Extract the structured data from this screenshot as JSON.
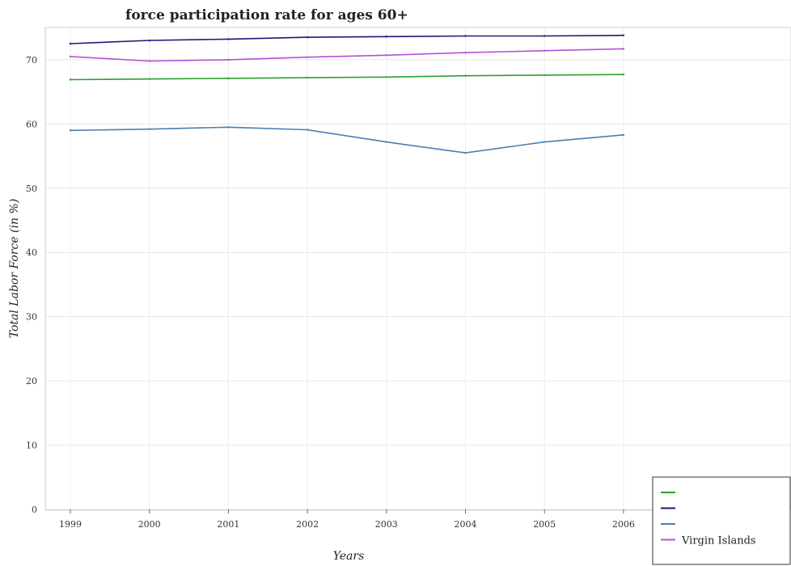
{
  "chart_data": {
    "type": "line",
    "title": "force participation rate for ages 60+",
    "xlabel": "Years",
    "ylabel": "Total Labor Force (in %)",
    "categories": [
      "1999",
      "2000",
      "2001",
      "2002",
      "2003",
      "2004",
      "2005",
      "2006"
    ],
    "ylim": [
      0,
      75
    ],
    "yticks": [
      0,
      10,
      20,
      30,
      40,
      50,
      60,
      70
    ],
    "grid": true,
    "legend_position": "bottom-right",
    "series": [
      {
        "name": "",
        "color": "#2ca02c",
        "values": [
          66.9,
          67.0,
          67.1,
          67.2,
          67.3,
          67.5,
          67.6,
          67.7
        ]
      },
      {
        "name": "",
        "color": "#1a1a7a",
        "values": [
          72.5,
          73.0,
          73.2,
          73.5,
          73.6,
          73.7,
          73.7,
          73.8
        ]
      },
      {
        "name": "",
        "color": "#4a7fb0",
        "values": [
          59.0,
          59.2,
          59.5,
          59.1,
          57.2,
          55.5,
          57.2,
          58.3
        ]
      },
      {
        "name": "Virgin Islands",
        "color": "#b84fd6",
        "values": [
          70.5,
          69.8,
          70.0,
          70.4,
          70.7,
          71.1,
          71.4,
          71.7
        ]
      }
    ]
  }
}
